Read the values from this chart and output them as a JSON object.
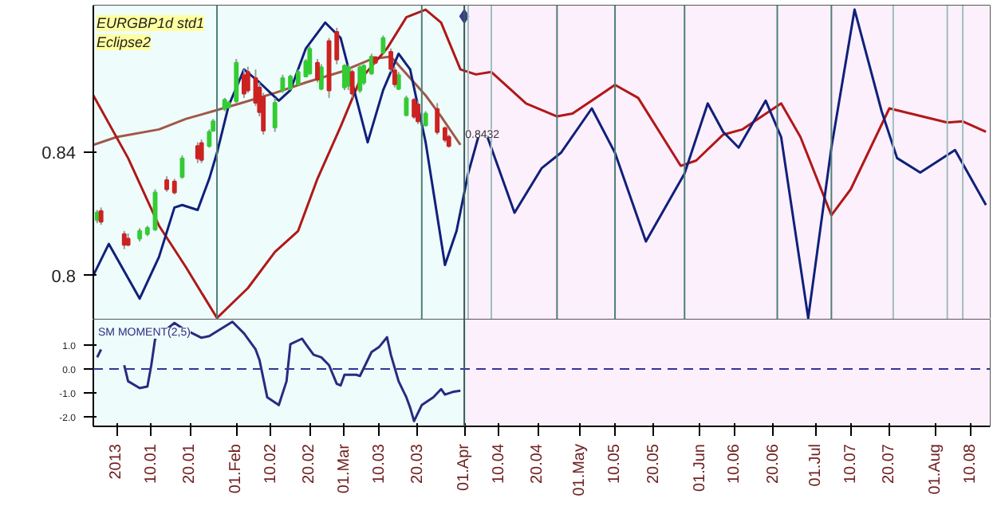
{
  "chart_data": [
    {
      "type": "candlestick",
      "title": "EURGBP1d std1",
      "subtitle": "Eclipse2",
      "tick_labels": "y",
      "xlim": [
        "2012-12-26",
        "2013-08-15"
      ],
      "ylim": [
        0.7858,
        0.8875
      ],
      "yticks": [
        0.8,
        0.84
      ],
      "x": [
        "2012-12-27",
        "2012-12-28",
        "2013-01-03",
        "2013-01-04",
        "2013-01-07",
        "2013-01-09",
        "2013-01-11",
        "2013-01-14",
        "2013-01-16",
        "2013-01-18",
        "2013-01-22",
        "2013-01-23",
        "2013-01-25",
        "2013-01-26",
        "2013-01-29",
        "2013-01-30",
        "2013-02-01",
        "2013-02-03",
        "2013-02-04",
        "2013-02-06",
        "2013-02-07",
        "2013-02-08",
        "2013-02-11",
        "2013-02-13",
        "2013-02-15",
        "2013-02-17",
        "2013-02-19",
        "2013-02-20",
        "2013-02-22",
        "2013-02-23",
        "2013-02-25",
        "2013-02-27",
        "2013-03-01",
        "2013-03-02",
        "2013-03-03",
        "2013-03-05",
        "2013-03-06",
        "2013-03-08",
        "2013-03-09",
        "2013-03-11",
        "2013-03-13",
        "2013-03-14",
        "2013-03-15",
        "2013-03-17",
        "2013-03-19",
        "2013-03-20",
        "2013-03-22",
        "2013-03-25",
        "2013-03-27",
        "2013-03-28"
      ],
      "ohlc": [
        [
          0.818,
          0.8213,
          0.817,
          0.8205
        ],
        [
          0.821,
          0.8221,
          0.8165,
          0.8175
        ],
        [
          0.8135,
          0.8145,
          0.8086,
          0.81
        ],
        [
          0.812,
          0.8137,
          0.8095,
          0.81
        ],
        [
          0.812,
          0.8154,
          0.8111,
          0.8145
        ],
        [
          0.8135,
          0.8162,
          0.8128,
          0.8155
        ],
        [
          0.815,
          0.828,
          0.8145,
          0.827
        ],
        [
          0.831,
          0.8322,
          0.8272,
          0.828
        ],
        [
          0.8305,
          0.8314,
          0.8263,
          0.827
        ],
        [
          0.832,
          0.839,
          0.8314,
          0.838
        ],
        [
          0.842,
          0.8432,
          0.8365,
          0.838
        ],
        [
          0.843,
          0.8441,
          0.8365,
          0.8375
        ],
        [
          0.842,
          0.8474,
          0.8415,
          0.8466
        ],
        [
          0.847,
          0.8508,
          0.8466,
          0.85
        ],
        [
          0.854,
          0.8576,
          0.8533,
          0.857
        ],
        [
          0.8545,
          0.8567,
          0.8542,
          0.856
        ],
        [
          0.8565,
          0.8702,
          0.8559,
          0.869
        ],
        [
          0.865,
          0.8668,
          0.8576,
          0.859
        ],
        [
          0.866,
          0.8677,
          0.8592,
          0.86
        ],
        [
          0.864,
          0.8668,
          0.855,
          0.856
        ],
        [
          0.861,
          0.8626,
          0.8516,
          0.853
        ],
        [
          0.858,
          0.8592,
          0.8457,
          0.847
        ],
        [
          0.848,
          0.8576,
          0.8466,
          0.856
        ],
        [
          0.86,
          0.8651,
          0.8592,
          0.864
        ],
        [
          0.8605,
          0.8651,
          0.8601,
          0.8645
        ],
        [
          0.862,
          0.8668,
          0.8618,
          0.866
        ],
        [
          0.8645,
          0.8702,
          0.8643,
          0.8695
        ],
        [
          0.8655,
          0.8744,
          0.8651,
          0.8735
        ],
        [
          0.869,
          0.8702,
          0.8626,
          0.8635
        ],
        [
          0.8605,
          0.8685,
          0.8601,
          0.8675
        ],
        [
          0.876,
          0.877,
          0.8576,
          0.86
        ],
        [
          0.879,
          0.8803,
          0.8685,
          0.87
        ],
        [
          0.861,
          0.8685,
          0.8601,
          0.868
        ],
        [
          0.8615,
          0.8685,
          0.8601,
          0.8675
        ],
        [
          0.866,
          0.8668,
          0.8576,
          0.859
        ],
        [
          0.86,
          0.8685,
          0.8592,
          0.8675
        ],
        [
          0.8625,
          0.8685,
          0.8618,
          0.868
        ],
        [
          0.8655,
          0.8719,
          0.8651,
          0.871
        ],
        [
          0.8708,
          0.8711,
          0.8685,
          0.869
        ],
        [
          0.8722,
          0.8778,
          0.8719,
          0.877
        ],
        [
          0.8725,
          0.8736,
          0.866,
          0.867
        ],
        [
          0.8665,
          0.8677,
          0.861,
          0.862
        ],
        [
          0.8605,
          0.866,
          0.8601,
          0.865
        ],
        [
          0.852,
          0.8583,
          0.8516,
          0.8575
        ],
        [
          0.857,
          0.8576,
          0.8508,
          0.8515
        ],
        [
          0.8555,
          0.8567,
          0.8491,
          0.85
        ],
        [
          0.8487,
          0.8533,
          0.8483,
          0.8525
        ],
        [
          0.854,
          0.8559,
          0.8457,
          0.8465
        ],
        [
          0.8478,
          0.8483,
          0.8432,
          0.844
        ],
        [
          0.845,
          0.8457,
          0.8415,
          0.842
        ]
      ],
      "series": [
        {
          "type": "line",
          "color": "#a05848",
          "x": [
            "2012-12-26",
            "2013-01-01",
            "2013-01-12",
            "2013-01-19",
            "2013-01-26",
            "2013-02-02",
            "2013-02-11",
            "2013-02-19",
            "2013-02-28",
            "2013-03-08",
            "2013-03-13",
            "2013-03-16",
            "2013-03-22",
            "2013-03-26",
            "2013-03-31"
          ],
          "values": [
            0.8424,
            0.8449,
            0.8474,
            0.8508,
            0.8533,
            0.8558,
            0.8592,
            0.8626,
            0.866,
            0.8702,
            0.871,
            0.8668,
            0.8584,
            0.8516,
            0.8424
          ]
        },
        {
          "type": "line",
          "color": "#b01818",
          "x": [
            "2012-12-26",
            "2013-01-04",
            "2013-01-12",
            "2013-01-19",
            "2013-01-27",
            "2013-02-04",
            "2013-02-11",
            "2013-02-17",
            "2013-02-22",
            "2013-02-28",
            "2013-03-05",
            "2013-03-12",
            "2013-03-17",
            "2013-03-22",
            "2013-03-26",
            "2013-03-31",
            "2013-04-04",
            "2013-04-08",
            "2013-04-17",
            "2013-04-25",
            "2013-04-29",
            "2013-05-10",
            "2013-05-16",
            "2013-05-27",
            "2013-05-31",
            "2013-06-07",
            "2013-06-12",
            "2013-06-22",
            "2013-06-27",
            "2013-07-05",
            "2013-07-10",
            "2013-07-20",
            "2013-08-04",
            "2013-08-08",
            "2013-08-14"
          ],
          "values": [
            0.8584,
            0.8381,
            0.8162,
            0.8027,
            0.7863,
            0.796,
            0.8077,
            0.8145,
            0.8314,
            0.8483,
            0.8634,
            0.8736,
            0.8837,
            0.8862,
            0.882,
            0.8668,
            0.8652,
            0.866,
            0.8558,
            0.8516,
            0.8525,
            0.8618,
            0.8576,
            0.8356,
            0.8373,
            0.8457,
            0.8474,
            0.8558,
            0.8449,
            0.8196,
            0.828,
            0.8542,
            0.8496,
            0.85,
            0.8466
          ]
        },
        {
          "type": "line",
          "color": "#10207a",
          "x": [
            "2012-12-26",
            "2012-12-30",
            "2013-01-07",
            "2013-01-12",
            "2013-01-16",
            "2013-01-18",
            "2013-01-22",
            "2013-01-25",
            "2013-01-27",
            "2013-01-30",
            "2013-02-03",
            "2013-02-07",
            "2013-02-12",
            "2013-02-15",
            "2013-02-19",
            "2013-02-24",
            "2013-02-28",
            "2013-03-07",
            "2013-03-11",
            "2013-03-15",
            "2013-03-18",
            "2013-03-22",
            "2013-03-27",
            "2013-03-30",
            "2013-04-02",
            "2013-04-05",
            "2013-04-07",
            "2013-04-14",
            "2013-04-21",
            "2013-04-26",
            "2013-05-04",
            "2013-05-10",
            "2013-05-18",
            "2013-05-28",
            "2013-06-03",
            "2013-06-07",
            "2013-06-11",
            "2013-06-18",
            "2013-06-22",
            "2013-06-29",
            "2013-07-05",
            "2013-07-11",
            "2013-07-18",
            "2013-07-22",
            "2013-07-28",
            "2013-08-06",
            "2013-08-14"
          ],
          "values": [
            0.8001,
            0.8103,
            0.7926,
            0.8061,
            0.8221,
            0.8229,
            0.8213,
            0.8314,
            0.8398,
            0.855,
            0.8668,
            0.8626,
            0.8567,
            0.8601,
            0.8736,
            0.882,
            0.877,
            0.8432,
            0.8601,
            0.8719,
            0.8668,
            0.8432,
            0.8035,
            0.8145,
            0.8331,
            0.8466,
            0.8449,
            0.8204,
            0.8348,
            0.8398,
            0.8542,
            0.8398,
            0.8111,
            0.8331,
            0.8558,
            0.8466,
            0.8415,
            0.8567,
            0.8449,
            0.7863,
            0.8415,
            0.8862,
            0.8533,
            0.8381,
            0.8334,
            0.8407,
            0.8229
          ]
        },
        {
          "type": "scatter",
          "marker": "diamond",
          "color": "#3b3b8f",
          "x": [
            "2013-04-01"
          ],
          "values": [
            0.884
          ]
        }
      ],
      "ref_lines": [
        {
          "axis": "x",
          "value": "2013-01-27",
          "color": "#4f7f78"
        },
        {
          "axis": "x",
          "value": "2013-03-21",
          "color": "#4f7f78"
        },
        {
          "axis": "x",
          "value": "2013-04-01",
          "color": "#2f5f58"
        },
        {
          "axis": "x",
          "value": "2013-04-02",
          "color": "#9fbfbf"
        },
        {
          "axis": "x",
          "value": "2013-04-08",
          "color": "#9fbfbf"
        },
        {
          "axis": "x",
          "value": "2013-04-25",
          "color": "#4f7f78"
        },
        {
          "axis": "x",
          "value": "2013-05-10",
          "color": "#4f7f78"
        },
        {
          "axis": "x",
          "value": "2013-05-28",
          "color": "#4f7f78"
        },
        {
          "axis": "x",
          "value": "2013-06-21",
          "color": "#4f7f78"
        },
        {
          "axis": "x",
          "value": "2013-07-05",
          "color": "#4f7f78"
        },
        {
          "axis": "x",
          "value": "2013-07-21",
          "color": "#9fbfbf"
        },
        {
          "axis": "x",
          "value": "2013-08-04",
          "color": "#9fbfbf"
        },
        {
          "axis": "x",
          "value": "2013-08-08",
          "color": "#9fbfbf"
        }
      ],
      "bands": [
        {
          "axis": "x",
          "from": "2012-12-26",
          "to": "2013-04-01",
          "color": "#effcfc"
        },
        {
          "axis": "x",
          "from": "2013-04-01",
          "to": "2013-08-15",
          "color": "#fcf0fc"
        }
      ],
      "annotations": [
        {
          "text": "0.8432",
          "x": "2013-03-31",
          "y": 0.8432
        }
      ]
    },
    {
      "type": "line",
      "xlim": [
        "2012-12-26",
        "2013-08-15"
      ],
      "ylim": [
        -2.4,
        2.07
      ],
      "yticks": [
        {
          "value": 1,
          "label": "1.0"
        },
        {
          "value": 0,
          "label": "0.0"
        },
        {
          "value": -1,
          "label": "-1.0"
        },
        {
          "value": -2,
          "label": "-2.0"
        }
      ],
      "xticks": [
        {
          "value": "2013-01-01",
          "label": "2013"
        },
        {
          "value": "2013-01-10",
          "label": "10.01"
        },
        {
          "value": "2013-01-20",
          "label": "20.01"
        },
        {
          "value": "2013-02-01",
          "label": "01.Feb"
        },
        {
          "value": "2013-02-10",
          "label": "10.02"
        },
        {
          "value": "2013-02-20",
          "label": "20.02"
        },
        {
          "value": "2013-03-01",
          "label": "01.Mar"
        },
        {
          "value": "2013-03-10",
          "label": "10.03"
        },
        {
          "value": "2013-03-20",
          "label": "20.03"
        },
        {
          "value": "2013-04-01",
          "label": "01.Apr"
        },
        {
          "value": "2013-04-10",
          "label": "10.04"
        },
        {
          "value": "2013-04-20",
          "label": "20.04"
        },
        {
          "value": "2013-05-01",
          "label": "01.May"
        },
        {
          "value": "2013-05-10",
          "label": "10.05"
        },
        {
          "value": "2013-05-20",
          "label": "20.05"
        },
        {
          "value": "2013-06-01",
          "label": "01.Jun"
        },
        {
          "value": "2013-06-10",
          "label": "10.06"
        },
        {
          "value": "2013-06-20",
          "label": "20.06"
        },
        {
          "value": "2013-07-01",
          "label": "01.Jul"
        },
        {
          "value": "2013-07-10",
          "label": "10.07"
        },
        {
          "value": "2013-07-20",
          "label": "20.07"
        },
        {
          "value": "2013-08-01",
          "label": "01.Aug"
        },
        {
          "value": "2013-08-10",
          "label": "10.08"
        }
      ],
      "series": [
        {
          "name": "SM MOMENT(2,5)",
          "color": "#2a2a80",
          "x": [
            "2012-12-27",
            "2012-12-28",
            "2013-01-01",
            "2013-01-03",
            "2013-01-04",
            "2013-01-07",
            "2013-01-09",
            "2013-01-10",
            "2013-01-11",
            "2013-01-16",
            "2013-01-18",
            "2013-01-23",
            "2013-01-25",
            "2013-01-31",
            "2013-02-03",
            "2013-02-06",
            "2013-02-07",
            "2013-02-09",
            "2013-02-12",
            "2013-02-14",
            "2013-02-15",
            "2013-02-18",
            "2013-02-19",
            "2013-02-21",
            "2013-02-23",
            "2013-02-25",
            "2013-02-27",
            "2013-02-28",
            "2013-03-01",
            "2013-03-04",
            "2013-03-05",
            "2013-03-08",
            "2013-03-10",
            "2013-03-12",
            "2013-03-13",
            "2013-03-15",
            "2013-03-17",
            "2013-03-18",
            "2013-03-19",
            "2013-03-21",
            "2013-03-24",
            "2013-03-26",
            "2013-03-27",
            "2013-03-29",
            "2013-03-31"
          ],
          "values": [
            0.49,
            0.82,
            null,
            0.16,
            -0.51,
            -0.8,
            -0.73,
            0.16,
            1.27,
            1.93,
            1.71,
            1.31,
            1.38,
            1.98,
            1.49,
            0.82,
            0.38,
            -1.18,
            -1.51,
            -0.51,
            1.04,
            1.27,
            1.04,
            0.6,
            0.49,
            0.16,
            -0.62,
            -0.69,
            -0.24,
            -0.24,
            -0.29,
            0.71,
            0.93,
            1.33,
            0.6,
            -0.51,
            -1.18,
            -1.62,
            -2.18,
            -1.51,
            -1.18,
            -0.84,
            -1.07,
            -0.96,
            -0.91
          ]
        }
      ],
      "ref_lines": [
        {
          "axis": "y",
          "value": 0,
          "color": "#333399",
          "line_style": "dashed"
        },
        {
          "axis": "x",
          "value": "2013-04-01",
          "color": "#2f5f58"
        }
      ],
      "bands": [
        {
          "axis": "x",
          "from": "2012-12-26",
          "to": "2013-04-01",
          "color": "#effcfc"
        },
        {
          "axis": "x",
          "from": "2013-04-01",
          "to": "2013-08-15",
          "color": "#fcf0fc"
        }
      ]
    }
  ]
}
